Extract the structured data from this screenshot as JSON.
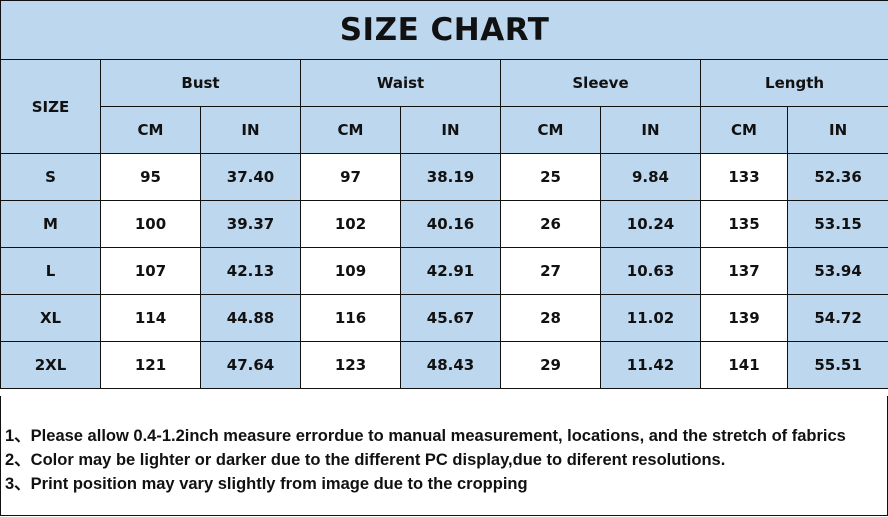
{
  "title": "SIZE CHART",
  "size_label": "SIZE",
  "groups": [
    "Bust",
    "Waist",
    "Sleeve",
    "Length"
  ],
  "units": [
    "CM",
    "IN",
    "CM",
    "IN",
    "CM",
    "IN",
    "CM",
    "IN"
  ],
  "rows": [
    {
      "size": "S",
      "values": [
        "95",
        "37.40",
        "97",
        "38.19",
        "25",
        "9.84",
        "133",
        "52.36"
      ]
    },
    {
      "size": "M",
      "values": [
        "100",
        "39.37",
        "102",
        "40.16",
        "26",
        "10.24",
        "135",
        "53.15"
      ]
    },
    {
      "size": "L",
      "values": [
        "107",
        "42.13",
        "109",
        "42.91",
        "27",
        "10.63",
        "137",
        "53.94"
      ]
    },
    {
      "size": "XL",
      "values": [
        "114",
        "44.88",
        "116",
        "45.67",
        "28",
        "11.02",
        "139",
        "54.72"
      ]
    },
    {
      "size": "2XL",
      "values": [
        "121",
        "47.64",
        "123",
        "48.43",
        "29",
        "11.42",
        "141",
        "55.51"
      ]
    }
  ],
  "notes": [
    "1、Please allow 0.4-1.2inch measure errordue to manual measurement, locations, and the stretch of fabrics",
    "2、Color may be lighter or darker due to the different PC display,due to diferent resolutions.",
    "3、Print position may vary slightly from image due to the cropping"
  ],
  "colors": {
    "header_fill": "#bdd7ee",
    "cell_fill": "#ffffff",
    "border": "#111111"
  }
}
